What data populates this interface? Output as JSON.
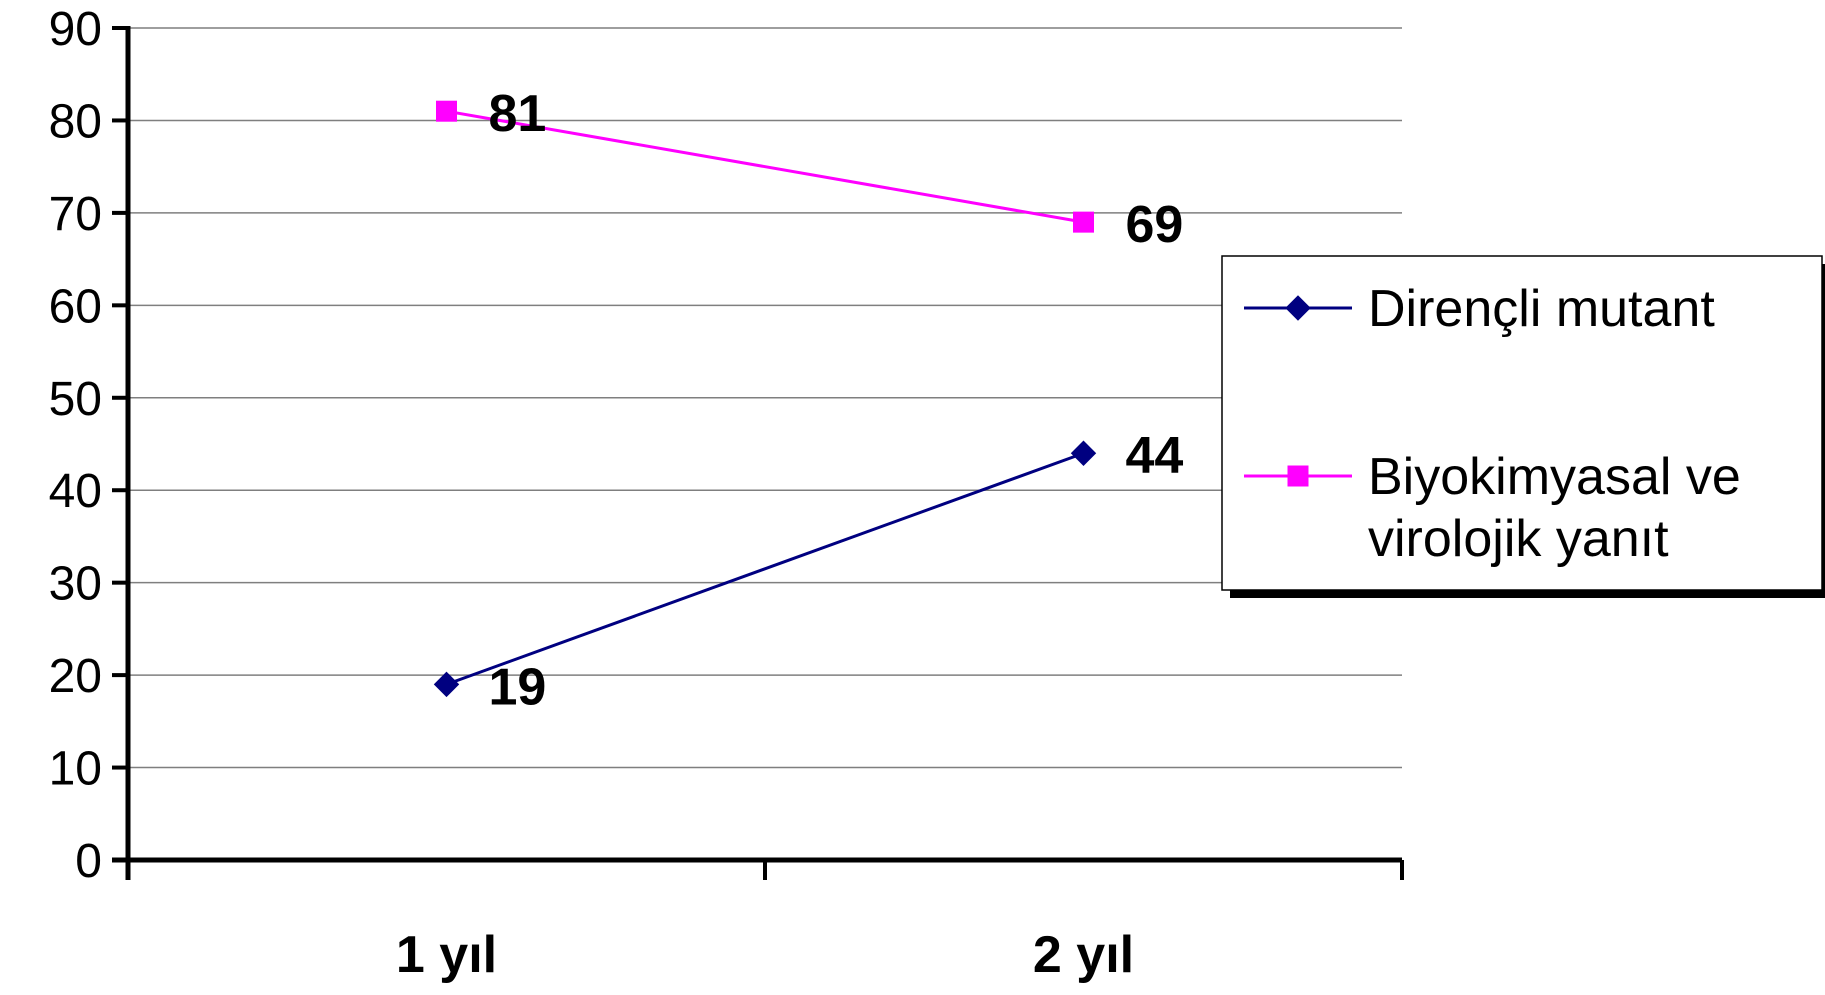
{
  "chart_data": {
    "type": "line",
    "categories": [
      "1 yıl",
      "2 yıl"
    ],
    "series": [
      {
        "name": "Dirençli mutant",
        "values": [
          19,
          44
        ],
        "color": "#000080",
        "marker": "diamond"
      },
      {
        "name": "Biyokimyasal ve virolojik yanıt",
        "values": [
          81,
          69
        ],
        "color": "#ff00ff",
        "marker": "square"
      }
    ],
    "ylim": [
      0,
      90
    ],
    "yticks": [
      0,
      10,
      20,
      30,
      40,
      50,
      60,
      70,
      80,
      90
    ],
    "grid": true,
    "legend_position": "right",
    "data_labels": true
  }
}
